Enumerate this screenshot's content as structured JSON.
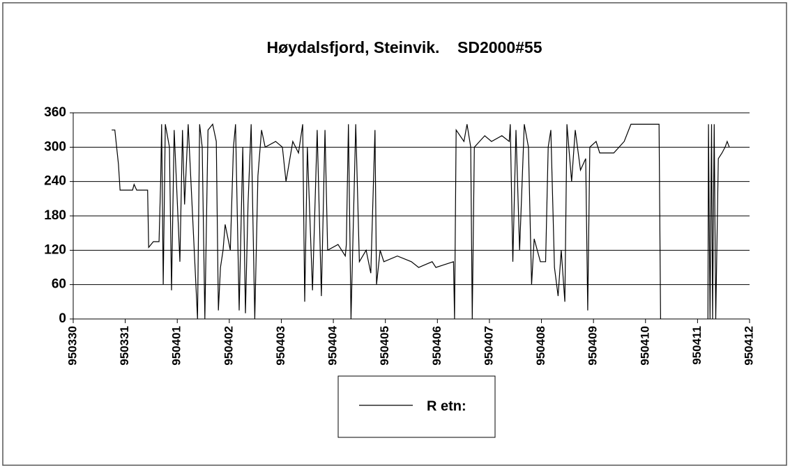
{
  "chart_data": {
    "type": "line",
    "title": "Høydalsfjord, Steinvik.    SD2000#55",
    "ylim": [
      0,
      360
    ],
    "yticks": [
      0,
      60,
      120,
      180,
      240,
      300,
      360
    ],
    "xlim": [
      0,
      13
    ],
    "xticks": [
      {
        "value": 0,
        "label": "950330"
      },
      {
        "value": 1,
        "label": "950331"
      },
      {
        "value": 2,
        "label": "950401"
      },
      {
        "value": 3,
        "label": "950402"
      },
      {
        "value": 4,
        "label": "950403"
      },
      {
        "value": 5,
        "label": "950404"
      },
      {
        "value": 6,
        "label": "950405"
      },
      {
        "value": 7,
        "label": "950406"
      },
      {
        "value": 8,
        "label": "950407"
      },
      {
        "value": 9,
        "label": "950408"
      },
      {
        "value": 10,
        "label": "950409"
      },
      {
        "value": 11,
        "label": "950410"
      },
      {
        "value": 12,
        "label": "950411"
      },
      {
        "value": 13,
        "label": "950412"
      }
    ],
    "grid": true,
    "legend": "bottom",
    "x": [
      0.74,
      0.8,
      0.87,
      0.9,
      1.14,
      1.17,
      1.22,
      1.43,
      1.45,
      1.54,
      1.65,
      1.68,
      1.7,
      1.73,
      1.77,
      1.85,
      1.89,
      1.94,
      2.05,
      2.1,
      2.14,
      2.21,
      2.39,
      2.43,
      2.48,
      2.53,
      2.59,
      2.68,
      2.75,
      2.79,
      2.83,
      2.88,
      2.92,
      3.02,
      3.08,
      3.12,
      3.19,
      3.26,
      3.31,
      3.36,
      3.42,
      3.49,
      3.55,
      3.62,
      3.69,
      3.89,
      4.02,
      4.09,
      4.22,
      4.33,
      4.41,
      4.45,
      4.5,
      4.6,
      4.69,
      4.77,
      4.84,
      4.89,
      5.09,
      5.23,
      5.25,
      5.29,
      5.34,
      5.43,
      5.5,
      5.63,
      5.72,
      5.8,
      5.83,
      5.9,
      5.97,
      6.23,
      6.5,
      6.64,
      6.9,
      6.97,
      7.31,
      7.33,
      7.36,
      7.51,
      7.57,
      7.64,
      7.67,
      7.71,
      7.91,
      8.04,
      8.24,
      8.38,
      8.4,
      8.45,
      8.51,
      8.58,
      8.67,
      8.75,
      8.81,
      8.86,
      8.98,
      9.08,
      9.13,
      9.18,
      9.25,
      9.32,
      9.38,
      9.45,
      9.49,
      9.58,
      9.65,
      9.75,
      9.85,
      9.89,
      9.93,
      10.05,
      10.12,
      10.39,
      10.59,
      10.72,
      11.26,
      11.29,
      11.6,
      12.2,
      12.21,
      12.24,
      12.27,
      12.29,
      12.32,
      12.35,
      12.4,
      12.47,
      12.53,
      12.57,
      12.61
    ],
    "series": [
      {
        "name": "R etn:",
        "color": "#000000",
        "values": [
          330,
          330,
          270,
          225,
          225,
          235,
          225,
          225,
          125,
          135,
          135,
          240,
          340,
          60,
          340,
          300,
          50,
          330,
          100,
          330,
          200,
          340,
          0,
          340,
          300,
          0,
          330,
          340,
          310,
          15,
          90,
          120,
          165,
          120,
          300,
          340,
          15,
          300,
          10,
          200,
          340,
          0,
          250,
          330,
          300,
          310,
          300,
          240,
          310,
          290,
          340,
          30,
          300,
          50,
          330,
          40,
          330,
          120,
          130,
          110,
          130,
          340,
          0,
          340,
          100,
          120,
          80,
          330,
          60,
          120,
          100,
          110,
          100,
          90,
          100,
          90,
          100,
          0,
          330,
          310,
          340,
          300,
          0,
          300,
          320,
          310,
          320,
          310,
          340,
          100,
          330,
          120,
          340,
          300,
          60,
          140,
          100,
          100,
          300,
          330,
          90,
          40,
          120,
          30,
          340,
          240,
          330,
          260,
          280,
          15,
          300,
          310,
          290,
          290,
          310,
          340,
          340,
          0,
          null,
          0,
          340,
          0,
          340,
          0,
          340,
          0,
          280,
          290,
          300,
          310,
          300
        ]
      }
    ]
  }
}
